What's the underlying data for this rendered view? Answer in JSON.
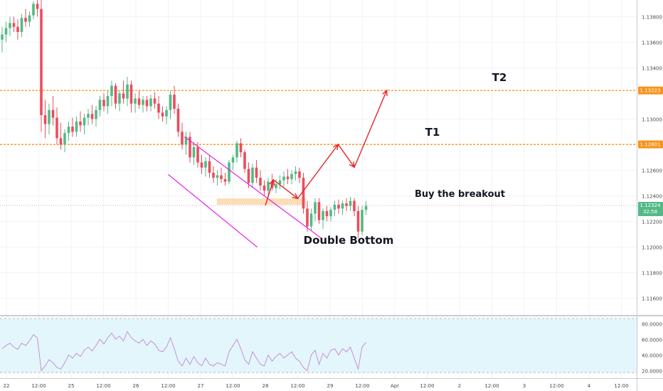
{
  "colors": {
    "up": "#53b987",
    "down": "#eb4d5c",
    "channel": "#e41be9",
    "level": "#f7931a",
    "arrow": "#e6262a",
    "zone": "#f7c27a",
    "rsi": "#c98fd6",
    "rsi_band": "#e3f6fb",
    "grid": "#f0f3f6",
    "axis_text": "#4a4a4a",
    "price_badge": "#53b987"
  },
  "annotations": {
    "buy_label": "Buy the breakout",
    "double_bottom_label": "Double Bottom",
    "t1_label": "T1",
    "t2_label": "T2"
  },
  "price_axis": {
    "ticks": [
      "1.13800",
      "1.13600",
      "1.13400",
      "1.13000",
      "1.12600",
      "1.12400",
      "1.12200",
      "1.12000",
      "1.11800",
      "1.11600"
    ],
    "level_t2": "1.13223",
    "level_t1": "1.12801",
    "current_price": "1.12324",
    "countdown": "32:58"
  },
  "rsi_axis": {
    "ticks": [
      "80.0000",
      "60.0000",
      "40.0000",
      "20.0000"
    ]
  },
  "time_axis": {
    "ticks": [
      "22",
      "12:00",
      "25",
      "12:00",
      "26",
      "12:00",
      "27",
      "12:00",
      "28",
      "12:00",
      "29",
      "12:00",
      "Apr",
      "12:00",
      "2",
      "12:00",
      "3",
      "12:00",
      "4",
      "12:00"
    ]
  },
  "chart_data": {
    "type": "candlestick",
    "price_range": [
      1.11485,
      1.1393
    ],
    "rsi_range": [
      17.5,
      83.0
    ],
    "levels": [
      1.13223,
      1.12801,
      1.12324
    ],
    "ohlc": [
      [
        1.1362,
        1.1372,
        1.1352,
        1.1366
      ],
      [
        1.1366,
        1.1376,
        1.136,
        1.1371
      ],
      [
        1.1371,
        1.138,
        1.1365,
        1.1375
      ],
      [
        1.1375,
        1.138,
        1.1368,
        1.1372
      ],
      [
        1.1372,
        1.1378,
        1.1362,
        1.1368
      ],
      [
        1.1368,
        1.1382,
        1.1364,
        1.1379
      ],
      [
        1.1379,
        1.1386,
        1.1372,
        1.1376
      ],
      [
        1.1376,
        1.1384,
        1.1372,
        1.1381
      ],
      [
        1.1381,
        1.1392,
        1.1378,
        1.139
      ],
      [
        1.139,
        1.1393,
        1.138,
        1.1386
      ],
      [
        1.1386,
        1.1393,
        1.129,
        1.1303
      ],
      [
        1.1303,
        1.1315,
        1.1285,
        1.1296
      ],
      [
        1.1296,
        1.1312,
        1.1288,
        1.1307
      ],
      [
        1.1307,
        1.1318,
        1.1295,
        1.1301
      ],
      [
        1.1301,
        1.1309,
        1.128,
        1.1285
      ],
      [
        1.1285,
        1.1297,
        1.1276,
        1.128
      ],
      [
        1.128,
        1.1292,
        1.1274,
        1.1289
      ],
      [
        1.1289,
        1.1298,
        1.1283,
        1.1294
      ],
      [
        1.1294,
        1.1301,
        1.1286,
        1.129
      ],
      [
        1.129,
        1.1302,
        1.1286,
        1.1298
      ],
      [
        1.1298,
        1.1306,
        1.129,
        1.1295
      ],
      [
        1.1295,
        1.1304,
        1.1288,
        1.1301
      ],
      [
        1.1301,
        1.1308,
        1.1295,
        1.1304
      ],
      [
        1.1304,
        1.1311,
        1.1296,
        1.13
      ],
      [
        1.13,
        1.131,
        1.1294,
        1.1307
      ],
      [
        1.1307,
        1.1318,
        1.1302,
        1.1315
      ],
      [
        1.1315,
        1.132,
        1.1306,
        1.131
      ],
      [
        1.131,
        1.1322,
        1.1304,
        1.1318
      ],
      [
        1.1318,
        1.133,
        1.131,
        1.1326
      ],
      [
        1.1326,
        1.1328,
        1.1308,
        1.1312
      ],
      [
        1.1312,
        1.1322,
        1.1306,
        1.132
      ],
      [
        1.132,
        1.133,
        1.1312,
        1.1316
      ],
      [
        1.1316,
        1.1333,
        1.131,
        1.1327
      ],
      [
        1.1327,
        1.133,
        1.1305,
        1.1312
      ],
      [
        1.1312,
        1.132,
        1.1305,
        1.1316
      ],
      [
        1.1316,
        1.1322,
        1.1308,
        1.1311
      ],
      [
        1.1311,
        1.1318,
        1.1305,
        1.1315
      ],
      [
        1.1315,
        1.1318,
        1.1306,
        1.131
      ],
      [
        1.131,
        1.1319,
        1.1306,
        1.1316
      ],
      [
        1.1316,
        1.1321,
        1.1308,
        1.1312
      ],
      [
        1.1312,
        1.1318,
        1.13,
        1.1305
      ],
      [
        1.1305,
        1.131,
        1.1298,
        1.1302
      ],
      [
        1.1302,
        1.131,
        1.1296,
        1.1307
      ],
      [
        1.1307,
        1.1322,
        1.13,
        1.1319
      ],
      [
        1.1319,
        1.1326,
        1.1304,
        1.1308
      ],
      [
        1.1308,
        1.1312,
        1.1286,
        1.129
      ],
      [
        1.129,
        1.1297,
        1.1276,
        1.128
      ],
      [
        1.128,
        1.129,
        1.1272,
        1.1286
      ],
      [
        1.1286,
        1.129,
        1.1266,
        1.127
      ],
      [
        1.127,
        1.1282,
        1.1264,
        1.1278
      ],
      [
        1.1278,
        1.1282,
        1.1262,
        1.1266
      ],
      [
        1.1266,
        1.1272,
        1.1257,
        1.1262
      ],
      [
        1.1262,
        1.127,
        1.1255,
        1.1267
      ],
      [
        1.1267,
        1.1272,
        1.1254,
        1.1258
      ],
      [
        1.1258,
        1.1263,
        1.125,
        1.1254
      ],
      [
        1.1254,
        1.126,
        1.1248,
        1.1256
      ],
      [
        1.1256,
        1.1262,
        1.125,
        1.1253
      ],
      [
        1.1253,
        1.1258,
        1.1248,
        1.1251
      ],
      [
        1.1251,
        1.1268,
        1.1249,
        1.1266
      ],
      [
        1.1266,
        1.1272,
        1.126,
        1.127
      ],
      [
        1.127,
        1.1283,
        1.1266,
        1.1281
      ],
      [
        1.1281,
        1.1285,
        1.127,
        1.1274
      ],
      [
        1.1274,
        1.1276,
        1.1258,
        1.1261
      ],
      [
        1.1261,
        1.1266,
        1.1246,
        1.125
      ],
      [
        1.125,
        1.1265,
        1.1246,
        1.1262
      ],
      [
        1.1262,
        1.1268,
        1.125,
        1.1254
      ],
      [
        1.1254,
        1.126,
        1.1244,
        1.1248
      ],
      [
        1.1248,
        1.1252,
        1.124,
        1.1244
      ],
      [
        1.1244,
        1.1254,
        1.124,
        1.1251
      ],
      [
        1.1251,
        1.1257,
        1.1244,
        1.1246
      ],
      [
        1.1246,
        1.1253,
        1.1242,
        1.1249
      ],
      [
        1.1249,
        1.1256,
        1.1245,
        1.1252
      ],
      [
        1.1252,
        1.1259,
        1.1247,
        1.1255
      ],
      [
        1.1255,
        1.1261,
        1.1249,
        1.1253
      ],
      [
        1.1253,
        1.126,
        1.1249,
        1.1257
      ],
      [
        1.1257,
        1.1263,
        1.1252,
        1.1259
      ],
      [
        1.1259,
        1.1262,
        1.125,
        1.1254
      ],
      [
        1.1254,
        1.1258,
        1.1226,
        1.123
      ],
      [
        1.123,
        1.1236,
        1.1212,
        1.1216
      ],
      [
        1.1216,
        1.123,
        1.1213,
        1.1226
      ],
      [
        1.1226,
        1.1238,
        1.122,
        1.1235
      ],
      [
        1.1235,
        1.1238,
        1.1218,
        1.1221
      ],
      [
        1.1221,
        1.123,
        1.1214,
        1.1228
      ],
      [
        1.1228,
        1.1232,
        1.122,
        1.1224
      ],
      [
        1.1224,
        1.1231,
        1.122,
        1.1229
      ],
      [
        1.1229,
        1.1236,
        1.1224,
        1.1233
      ],
      [
        1.1233,
        1.1237,
        1.1226,
        1.123
      ],
      [
        1.123,
        1.1236,
        1.1225,
        1.1234
      ],
      [
        1.1234,
        1.1238,
        1.1228,
        1.1232
      ],
      [
        1.1232,
        1.1239,
        1.1228,
        1.1236
      ],
      [
        1.1236,
        1.1238,
        1.1224,
        1.1228
      ],
      [
        1.1228,
        1.1232,
        1.1207,
        1.1212
      ],
      [
        1.1212,
        1.1232,
        1.1209,
        1.1229
      ],
      [
        1.1229,
        1.1236,
        1.1225,
        1.1232
      ]
    ],
    "rsi": [
      48,
      52,
      55,
      50,
      47,
      55,
      52,
      58,
      66,
      62,
      20,
      26,
      34,
      30,
      24,
      22,
      30,
      40,
      36,
      42,
      38,
      46,
      50,
      45,
      52,
      60,
      54,
      62,
      68,
      60,
      64,
      58,
      70,
      62,
      58,
      55,
      60,
      52,
      58,
      54,
      46,
      44,
      50,
      62,
      48,
      32,
      26,
      36,
      28,
      38,
      30,
      26,
      36,
      28,
      26,
      30,
      28,
      26,
      44,
      52,
      60,
      48,
      34,
      28,
      44,
      36,
      28,
      26,
      40,
      32,
      38,
      42,
      36,
      40,
      44,
      36,
      32,
      24,
      20,
      40,
      46,
      28,
      42,
      36,
      46,
      48,
      40,
      48,
      44,
      50,
      36,
      22,
      50,
      56
    ],
    "channel_upper": [
      [
        "Mar 27 12:00",
        1.12862
      ],
      [
        "Mar 31 18:00",
        1.12064
      ]
    ],
    "channel_lower": [
      [
        "Mar 27 00:00",
        1.12566
      ],
      [
        "Mar 29 18:00",
        1.11998
      ]
    ],
    "breakout_zone": {
      "top": 1.12379,
      "bottom": 1.1233
    },
    "projected_path": [
      [
        "Mar 30 00:00",
        1.12324
      ],
      [
        "Mar 30 06:00",
        1.12524
      ],
      [
        "Mar 31 00:00",
        1.12379
      ],
      [
        "Apr 1 06:00",
        1.12801
      ],
      [
        "Apr 1 18:00",
        1.12623
      ],
      [
        "Apr 2 18:00",
        1.13223
      ]
    ]
  }
}
